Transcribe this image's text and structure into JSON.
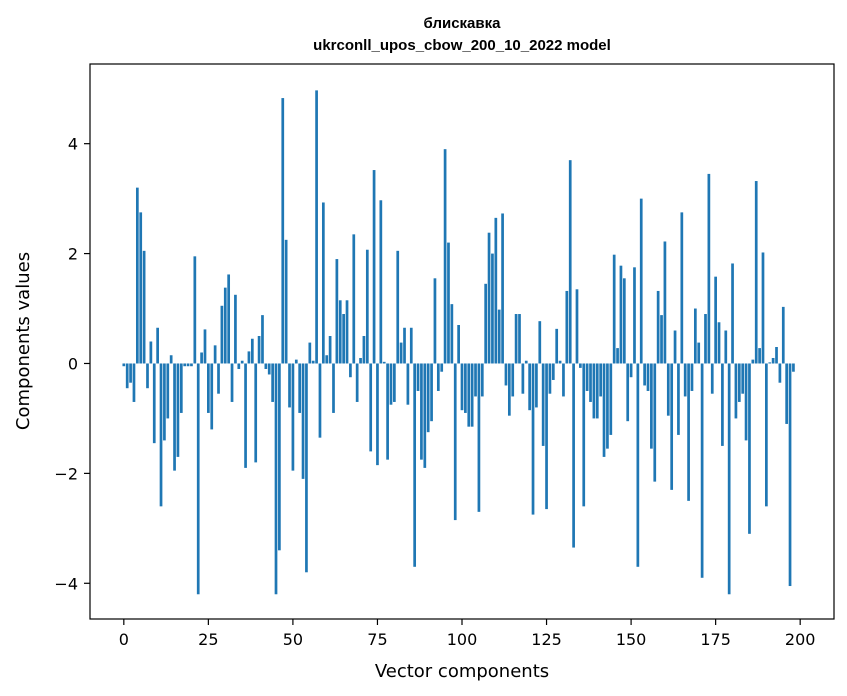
{
  "chart_data": {
    "type": "bar",
    "title_line1": "блискавка",
    "title_line2": "ukrconll_upos_cbow_200_10_2022 model",
    "xlabel": "Vector components",
    "ylabel": "Components values",
    "xlim": [
      -10,
      210
    ],
    "ylim": [
      -4.65,
      5.45
    ],
    "xticks": [
      0,
      25,
      50,
      75,
      100,
      125,
      150,
      175,
      200
    ],
    "yticks": [
      -4,
      -2,
      0,
      2,
      4
    ],
    "ytick_labels": [
      "−4",
      "−2",
      "0",
      "2",
      "4"
    ],
    "grid": false,
    "bar_color": "#1f77b4",
    "values": [
      -0.05,
      -0.45,
      -0.35,
      -0.7,
      3.2,
      2.75,
      2.05,
      -0.45,
      0.4,
      -1.45,
      0.65,
      -2.6,
      -1.4,
      -1.0,
      0.15,
      -1.95,
      -1.7,
      -0.9,
      -0.05,
      -0.05,
      -0.05,
      1.95,
      -4.2,
      0.2,
      0.62,
      -0.9,
      -1.2,
      0.33,
      -0.55,
      1.05,
      1.38,
      1.62,
      -0.7,
      1.25,
      -0.1,
      0.05,
      -1.9,
      0.22,
      0.45,
      -1.8,
      0.5,
      0.88,
      -0.1,
      -0.2,
      -0.7,
      -4.2,
      -3.4,
      4.83,
      2.25,
      -0.8,
      -1.95,
      0.07,
      -0.9,
      -2.1,
      -3.8,
      0.38,
      0.05,
      4.97,
      -1.35,
      2.93,
      0.15,
      0.5,
      -0.9,
      1.9,
      1.15,
      0.9,
      1.15,
      -0.25,
      2.35,
      -0.7,
      0.1,
      0.5,
      2.07,
      -1.6,
      3.52,
      -1.85,
      2.97,
      0.03,
      -1.75,
      -0.75,
      -0.7,
      2.05,
      0.38,
      0.65,
      -0.75,
      0.65,
      -3.7,
      -0.5,
      -1.75,
      -1.9,
      -1.25,
      -1.05,
      1.55,
      -0.5,
      -0.15,
      3.9,
      2.2,
      1.08,
      -2.85,
      0.7,
      -0.85,
      -0.9,
      -1.15,
      -1.15,
      -0.6,
      -2.7,
      -0.6,
      1.45,
      2.38,
      2.0,
      2.65,
      0.98,
      2.73,
      -0.4,
      -0.95,
      -0.6,
      0.9,
      0.9,
      -0.55,
      0.05,
      -0.85,
      -2.75,
      -0.8,
      0.77,
      -1.5,
      -2.65,
      -0.55,
      -0.3,
      0.63,
      0.05,
      -0.6,
      1.32,
      3.7,
      -3.35,
      1.35,
      -0.08,
      -2.6,
      -0.5,
      -0.7,
      -1.0,
      -1.0,
      -0.6,
      -1.7,
      -1.55,
      -1.3,
      1.98,
      0.28,
      1.78,
      1.55,
      -1.05,
      -0.25,
      1.75,
      -3.7,
      3.0,
      -0.4,
      -0.5,
      -1.55,
      -2.15,
      1.32,
      0.88,
      2.22,
      -0.95,
      -2.3,
      0.6,
      -1.3,
      2.75,
      -0.6,
      -2.5,
      -0.5,
      1.0,
      0.38,
      -3.9,
      0.9,
      3.45,
      -0.55,
      1.58,
      0.75,
      -1.5,
      0.6,
      -4.2,
      1.82,
      -1.0,
      -0.7,
      -0.55,
      -1.4,
      -3.1,
      0.07,
      3.32,
      0.28,
      2.02,
      -2.6,
      0.02,
      0.1,
      0.3,
      -0.35,
      1.03,
      -1.1,
      -4.05,
      -0.15
    ]
  }
}
